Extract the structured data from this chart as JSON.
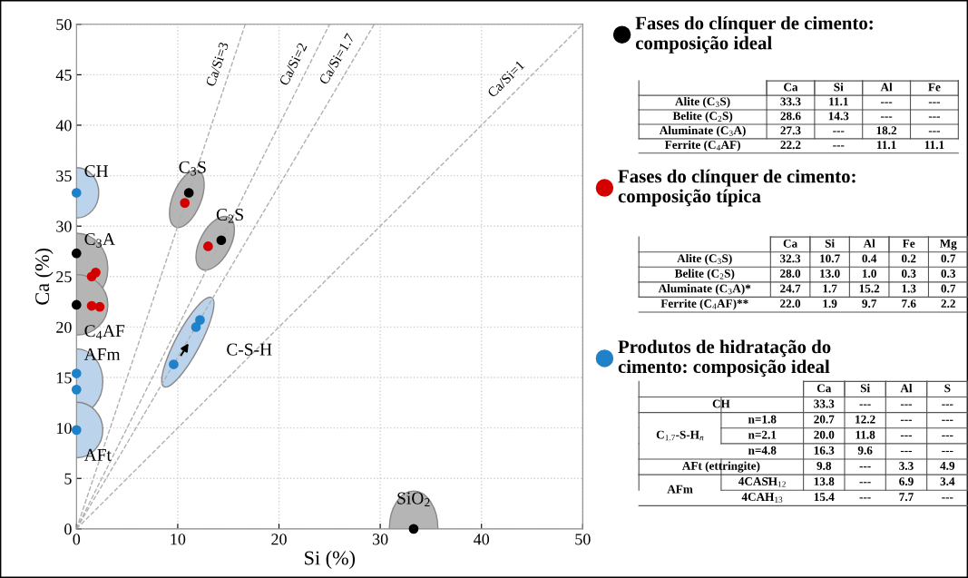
{
  "chart_data": [
    {
      "type": "scatter",
      "xlabel": "Si (%)",
      "ylabel": "Ca (%)",
      "xlim": [
        0,
        50
      ],
      "ylim": [
        0,
        50
      ],
      "xticks": [
        0,
        10,
        20,
        30,
        40,
        50
      ],
      "yticks": [
        0,
        5,
        10,
        15,
        20,
        25,
        30,
        35,
        40,
        45,
        50
      ],
      "grid": true,
      "legend": "right",
      "marker": "circle",
      "series": [
        {
          "type": "line",
          "color": "#b0b0b0",
          "line_style": "dashed",
          "marker": "none",
          "x": [
            0,
            16.67
          ],
          "values": [
            0,
            50
          ]
        },
        {
          "type": "line",
          "color": "#b0b0b0",
          "line_style": "dashed",
          "marker": "none",
          "x": [
            0,
            25
          ],
          "values": [
            0,
            50
          ]
        },
        {
          "type": "line",
          "color": "#b0b0b0",
          "line_style": "dashed",
          "marker": "none",
          "x": [
            0,
            29.41
          ],
          "values": [
            0,
            50
          ]
        },
        {
          "type": "line",
          "color": "#b0b0b0",
          "line_style": "dashed",
          "marker": "none",
          "x": [
            0,
            50
          ],
          "values": [
            0,
            50
          ]
        },
        {
          "name": "Fases do clínquer de cimento:\ncomposição ideal",
          "color": "#000000",
          "x": [
            11.1,
            14.3,
            0,
            0,
            33.3
          ],
          "values": [
            33.3,
            28.6,
            27.3,
            22.2,
            0
          ]
        },
        {
          "name": "Fases do clínquer de cimento:\ncomposição típica",
          "color": "#d40000",
          "x": [
            10.7,
            13.0,
            1.5,
            1.9,
            1.5,
            2.3
          ],
          "values": [
            32.3,
            28.0,
            25.0,
            25.4,
            22.1,
            22.0
          ]
        },
        {
          "name": "Produtos de hidratação do\ncimento: composição ideal",
          "color": "#1f82c8",
          "x": [
            0,
            12.2,
            11.8,
            9.6,
            0,
            0,
            0
          ],
          "values": [
            33.3,
            20.7,
            20.0,
            16.3,
            9.8,
            13.8,
            15.4
          ]
        }
      ],
      "annotations": [
        {
          "text": "Ca/Si=3",
          "x": 15,
          "y": 45
        },
        {
          "text": "Ca/Si=2",
          "x": 22.5,
          "y": 45
        },
        {
          "text": "Ca/Si=1.7",
          "x": 26.8,
          "y": 45.5
        },
        {
          "text": "Ca/Si=1",
          "x": 43.5,
          "y": 43.5
        },
        {
          "text": "CH",
          "x": 0,
          "y": 33.3
        },
        {
          "text": "C$_{3}$S",
          "x": 11.1,
          "y": 33.3
        },
        {
          "text": "C$_{2}$S",
          "x": 14.3,
          "y": 28.6
        },
        {
          "text": "C$_{3}$A",
          "x": 0,
          "y": 27.3
        },
        {
          "text": "C$_{4}$AF",
          "x": 0,
          "y": 22.2
        },
        {
          "text": "AFm",
          "x": 0,
          "y": 15.4
        },
        {
          "text": "AFt",
          "x": 0,
          "y": 9.8
        },
        {
          "text": "C-S-H",
          "x": 11.8,
          "y": 20.0
        },
        {
          "text": "SiO$_{2}$",
          "x": 33.3,
          "y": 0
        }
      ]
    },
    {
      "type": "other",
      "categories": [
        "Ca",
        "Si",
        "Al",
        "Fe"
      ],
      "y_categories": [
        "Alite (C$_{3}$S)",
        "Belite (C$_{2}$S)",
        "Aluminate (C$_{3}$A)",
        "Ferrite (C$_{4}$AF)"
      ],
      "cell_labels": [
        [
          "33.3",
          "11.1",
          "---",
          "---"
        ],
        [
          "28.6",
          "14.3",
          "---",
          "---"
        ],
        [
          "27.3",
          "---",
          "18.2",
          "---"
        ],
        [
          "22.2",
          "---",
          "11.1",
          "11.1"
        ]
      ]
    },
    {
      "type": "other",
      "categories": [
        "Ca",
        "Si",
        "Al",
        "Fe",
        "Mg"
      ],
      "y_categories": [
        "Alite (C$_{3}$S)",
        "Belite (C$_{2}$S)",
        "Aluminate (C$_{3}$A)*",
        "Ferrite (C$_{4}$AF)**"
      ],
      "cell_labels": [
        [
          "32.3",
          "10.7",
          "0.4",
          "0.2",
          "0.7"
        ],
        [
          "28.0",
          "13.0",
          "1.0",
          "0.3",
          "0.3"
        ],
        [
          "24.7",
          "1.7",
          "15.2",
          "1.3",
          "0.7"
        ],
        [
          "22.0",
          "1.9",
          "9.7",
          "7.6",
          "2.2"
        ]
      ]
    },
    {
      "type": "other",
      "categories": [
        "Ca",
        "Si",
        "Al",
        "S"
      ],
      "y_categories": [
        "CH",
        "C$_{1.7}$-S-H$_{n}$",
        null,
        null,
        "AFt (ettringite)",
        "AFm",
        null
      ],
      "y2_categories": [
        null,
        "n=1.8",
        "n=2.1",
        "n=4.8",
        null,
        "4CAS̄H$_{12}$",
        "4CAH$_{13}$"
      ],
      "cell_labels": [
        [
          "33.3",
          "---",
          "---",
          "---"
        ],
        [
          "20.7",
          "12.2",
          "---",
          "---"
        ],
        [
          "20.0",
          "11.8",
          "---",
          "---"
        ],
        [
          "16.3",
          "9.6",
          "---",
          "---"
        ],
        [
          "9.8",
          "---",
          "3.3",
          "4.9"
        ],
        [
          "13.8",
          "---",
          "6.9",
          "3.4"
        ],
        [
          "15.4",
          "---",
          "7.7",
          "---"
        ]
      ]
    }
  ]
}
